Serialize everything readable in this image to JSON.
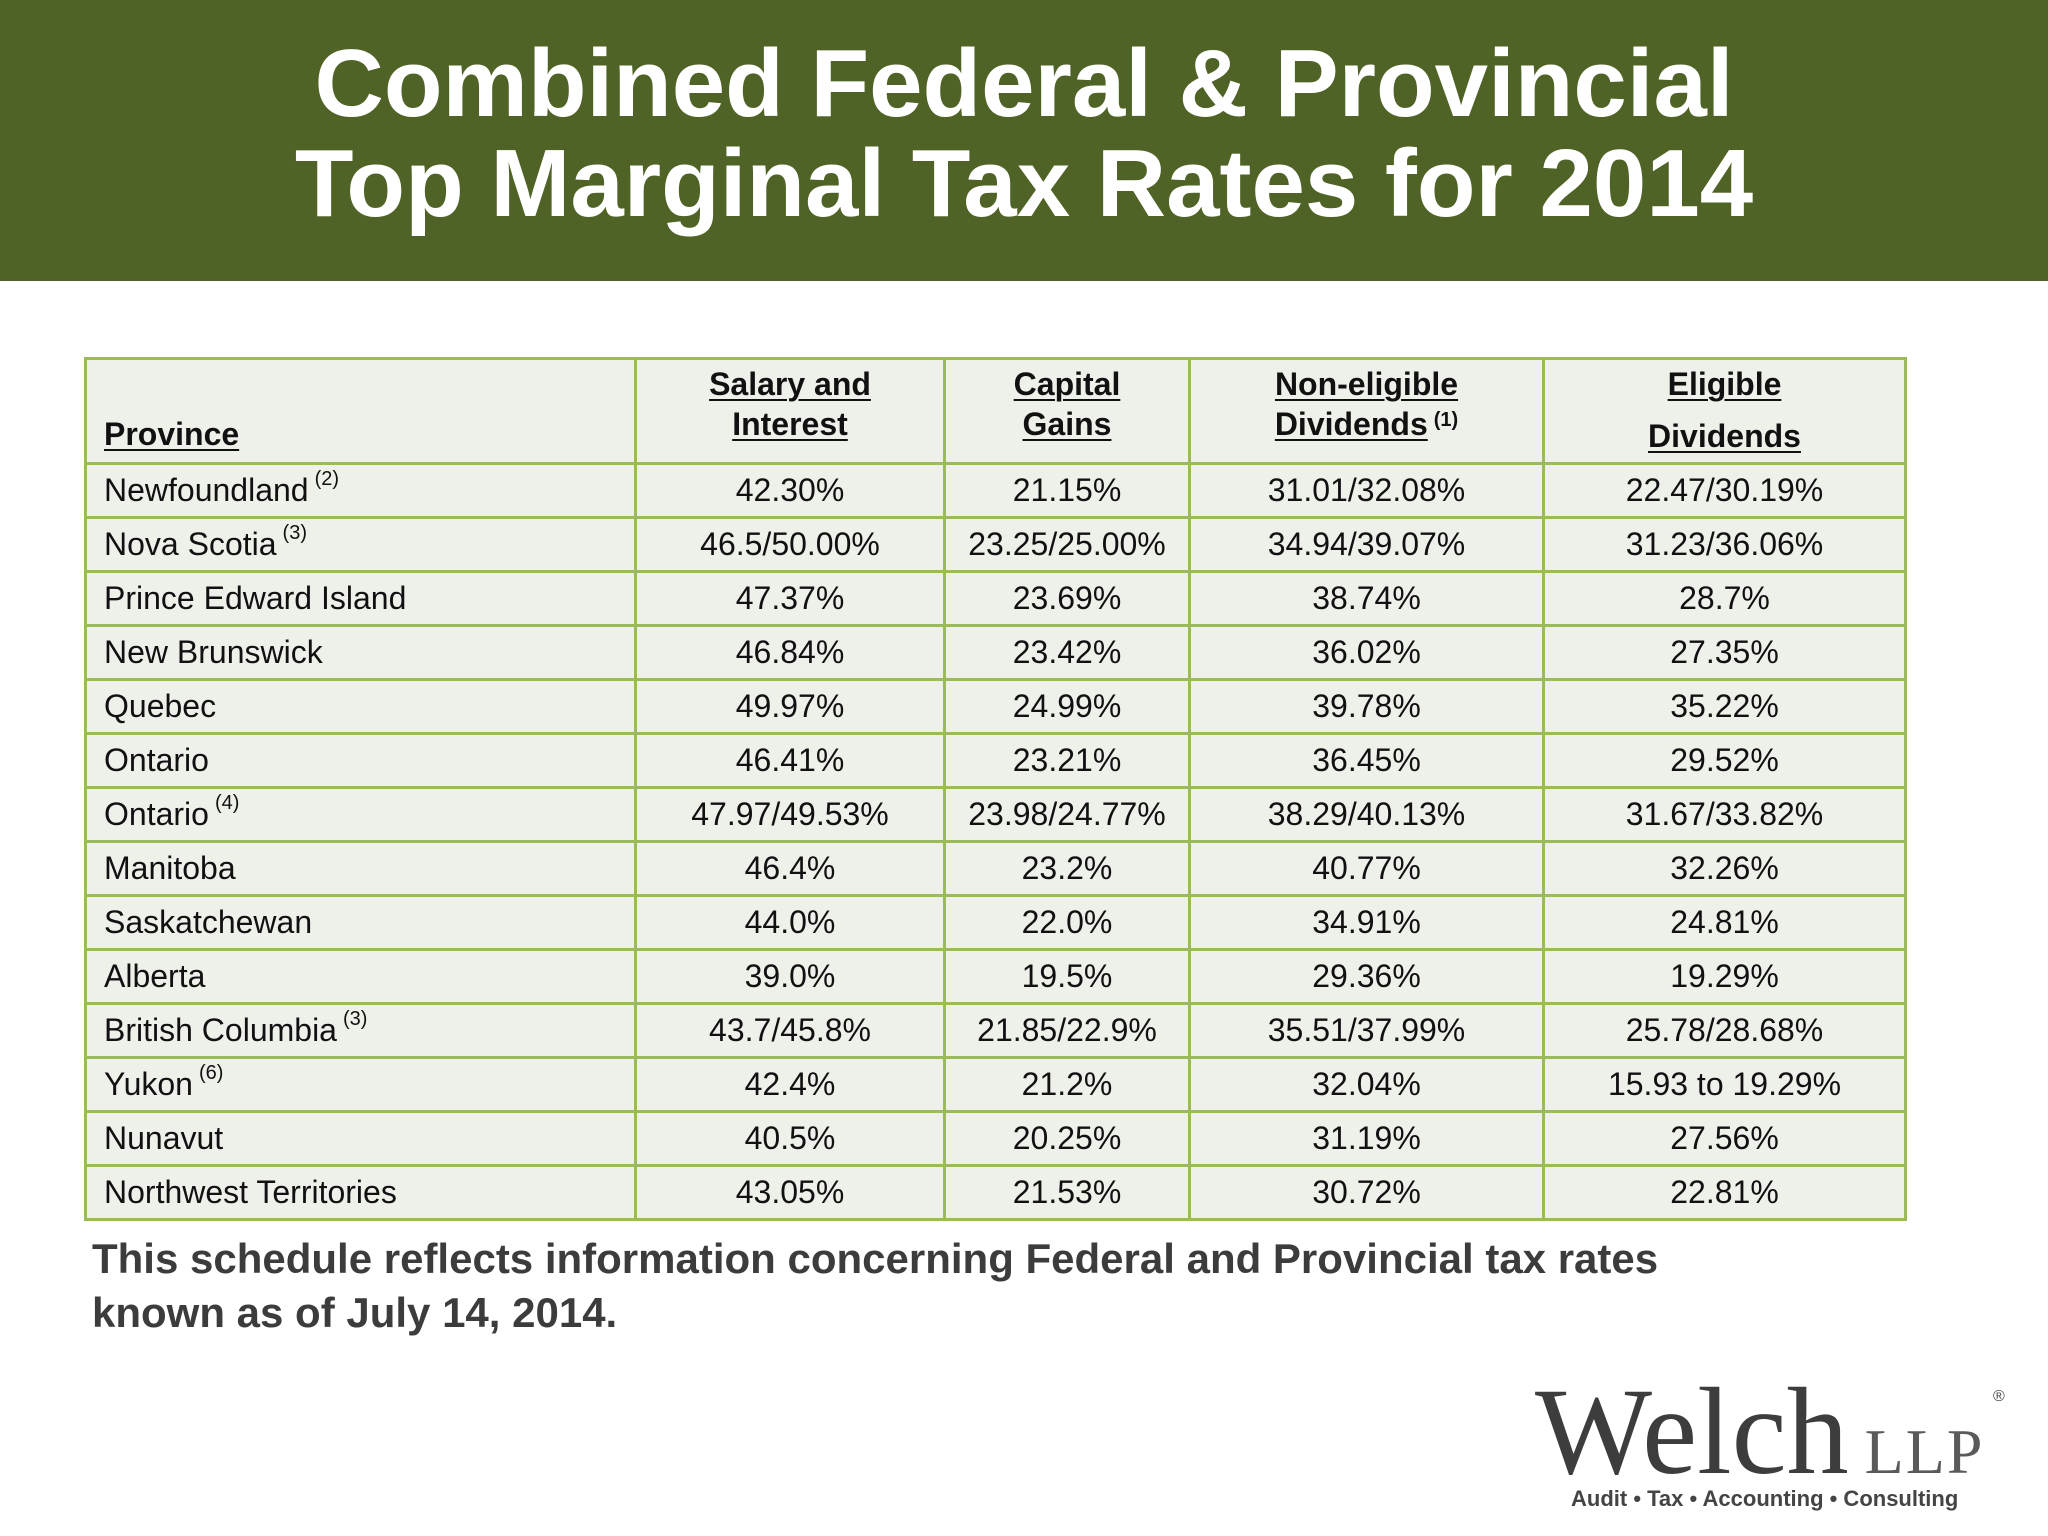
{
  "title": {
    "line1": "Combined Federal & Provincial",
    "line2": "Top Marginal Tax Rates for 2014"
  },
  "table": {
    "headers": {
      "province": "Province",
      "salary_l1": "Salary and",
      "salary_l2": "Interest",
      "capital_l1": "Capital",
      "capital_l2": "Gains",
      "noneligible_l1": "Non-eligible",
      "noneligible_l2": "Dividends",
      "noneligible_note": "(1)",
      "eligible_l1": "Eligible",
      "eligible_l2": "Dividends"
    },
    "rows": [
      {
        "province": "Newfoundland",
        "note": "(2)",
        "salary": "42.30%",
        "capital": "21.15%",
        "noneligible": "31.01/32.08%",
        "eligible": "22.47/30.19%"
      },
      {
        "province": "Nova Scotia",
        "note": "(3)",
        "salary": "46.5/50.00%",
        "capital": "23.25/25.00%",
        "noneligible": "34.94/39.07%",
        "eligible": "31.23/36.06%"
      },
      {
        "province": "Prince Edward Island",
        "note": "",
        "salary": "47.37%",
        "capital": "23.69%",
        "noneligible": "38.74%",
        "eligible": "28.7%"
      },
      {
        "province": "New Brunswick",
        "note": "",
        "salary": "46.84%",
        "capital": "23.42%",
        "noneligible": "36.02%",
        "eligible": "27.35%"
      },
      {
        "province": "Quebec",
        "note": "",
        "salary": "49.97%",
        "capital": "24.99%",
        "noneligible": "39.78%",
        "eligible": "35.22%"
      },
      {
        "province": "Ontario",
        "note": "",
        "salary": "46.41%",
        "capital": "23.21%",
        "noneligible": "36.45%",
        "eligible": "29.52%"
      },
      {
        "province": "Ontario",
        "note": "(4)",
        "salary": "47.97/49.53%",
        "capital": "23.98/24.77%",
        "noneligible": "38.29/40.13%",
        "eligible": "31.67/33.82%"
      },
      {
        "province": "Manitoba",
        "note": "",
        "salary": "46.4%",
        "capital": "23.2%",
        "noneligible": "40.77%",
        "eligible": "32.26%"
      },
      {
        "province": "Saskatchewan",
        "note": "",
        "salary": "44.0%",
        "capital": "22.0%",
        "noneligible": "34.91%",
        "eligible": "24.81%"
      },
      {
        "province": "Alberta",
        "note": "",
        "salary": "39.0%",
        "capital": "19.5%",
        "noneligible": "29.36%",
        "eligible": "19.29%"
      },
      {
        "province": "British Columbia",
        "note": "(3)",
        "salary": "43.7/45.8%",
        "capital": "21.85/22.9%",
        "noneligible": "35.51/37.99%",
        "eligible": "25.78/28.68%"
      },
      {
        "province": "Yukon",
        "note": "(6)",
        "salary": "42.4%",
        "capital": "21.2%",
        "noneligible": "32.04%",
        "eligible": "15.93 to 19.29%"
      },
      {
        "province": "Nunavut",
        "note": "",
        "salary": "40.5%",
        "capital": "20.25%",
        "noneligible": "31.19%",
        "eligible": "27.56%"
      },
      {
        "province": "Northwest Territories",
        "note": "",
        "salary": "43.05%",
        "capital": "21.53%",
        "noneligible": "30.72%",
        "eligible": "22.81%"
      }
    ]
  },
  "note": {
    "line1": "This schedule reflects information concerning Federal and Provincial tax rates",
    "line2": "known as of July 14, 2014."
  },
  "logo": {
    "name": "Welch",
    "suffix": "LLP",
    "registered": "®",
    "tagline": "Audit • Tax • Accounting • Consulting"
  },
  "colors": {
    "title_band": "#4e6325",
    "table_border": "#9bbb59",
    "table_background": "#eef0ea"
  }
}
